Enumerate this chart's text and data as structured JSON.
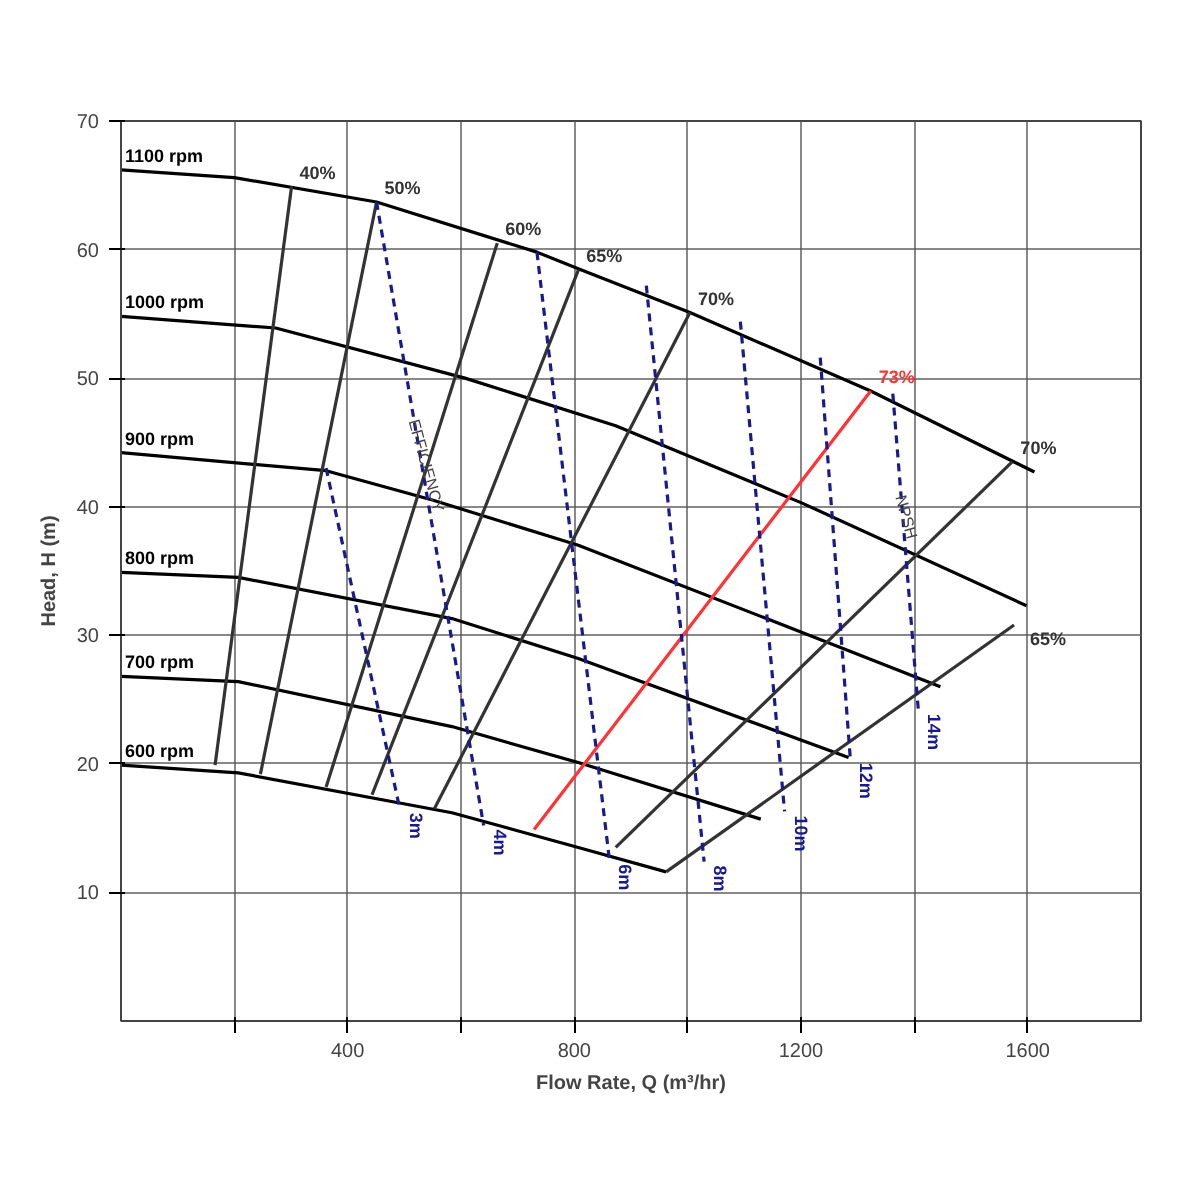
{
  "chart_data": {
    "type": "line",
    "xlabel": "Flow Rate, Q (m³/hr)",
    "ylabel": "Head, H (m)",
    "xlim": [
      0,
      1800
    ],
    "ylim": [
      0,
      70
    ],
    "xticks": [
      {
        "value": 200,
        "label": null
      },
      400,
      {
        "value": 600,
        "label": null
      },
      800,
      {
        "value": 1000,
        "label": null
      },
      1200,
      {
        "value": 1400,
        "label": null
      },
      1600
    ],
    "yticks": [
      10,
      20,
      30,
      40,
      50,
      60,
      70
    ],
    "grid": true,
    "annotations": [
      {
        "text": "EFFICIENCY",
        "x": 523,
        "y": 43
      },
      {
        "text": "NPSH",
        "x": 1370,
        "y": 39
      }
    ],
    "series": [
      {
        "name": "1100 rpm",
        "color": "#000000",
        "x": [
          0,
          200,
          451,
          734,
          807,
          1004,
          1323,
          1612
        ],
        "values": [
          66.2,
          65.6,
          63.7,
          59.8,
          58.5,
          55.1,
          49.0,
          42.7
        ]
      },
      {
        "name": "1000 rpm",
        "color": "#000000",
        "x": [
          0,
          273,
          607,
          873,
          1201,
          1598
        ],
        "values": [
          54.8,
          53.9,
          50.0,
          46.3,
          40.3,
          32.3
        ]
      },
      {
        "name": "900 rpm",
        "color": "#000000",
        "x": [
          0,
          362,
          551,
          807,
          1273,
          1446
        ],
        "values": [
          44.2,
          42.8,
          40.5,
          37.0,
          29.0,
          26.0
        ]
      },
      {
        "name": "800 rpm",
        "color": "#000000",
        "x": [
          0,
          207,
          584,
          807,
          1284
        ],
        "values": [
          34.9,
          34.5,
          31.3,
          28.2,
          20.5
        ]
      },
      {
        "name": "700 rpm",
        "color": "#000000",
        "x": [
          0,
          207,
          584,
          807,
          1129
        ],
        "values": [
          26.8,
          26.4,
          22.9,
          20.1,
          15.7
        ]
      },
      {
        "name": "600 rpm",
        "color": "#000000",
        "x": [
          0,
          207,
          584,
          807,
          962
        ],
        "values": [
          19.9,
          19.3,
          16.2,
          13.5,
          11.6
        ]
      },
      {
        "name": "40%",
        "color": "#333333",
        "x": [
          166,
          301
        ],
        "values": [
          19.9,
          64.9
        ]
      },
      {
        "name": "50%",
        "color": "#333333",
        "x": [
          246,
          451
        ],
        "values": [
          19.2,
          63.7
        ]
      },
      {
        "name": "60%",
        "color": "#333333",
        "x": [
          362,
          664
        ],
        "values": [
          18.2,
          60.5
        ]
      },
      {
        "name": "65%",
        "color": "#333333",
        "x": [
          443,
          807
        ],
        "values": [
          17.6,
          58.4
        ]
      },
      {
        "name": "70%",
        "color": "#333333",
        "x": [
          553,
          1004
        ],
        "values": [
          16.5,
          55.1
        ]
      },
      {
        "name": "73%",
        "color": "#ff3333",
        "x": [
          729,
          1323
        ],
        "values": [
          14.9,
          49.0
        ]
      },
      {
        "name": "70%",
        "color": "#333333",
        "x": [
          873,
          1573
        ],
        "values": [
          13.5,
          43.5
        ]
      },
      {
        "name": "65%",
        "color": "#333333",
        "x": [
          962,
          1576
        ],
        "values": [
          11.6,
          30.8
        ]
      },
      {
        "name": "3m",
        "color": "#1a1a8c",
        "line_style": "dashed",
        "x": [
          362,
          492
        ],
        "values": [
          43.0,
          16.5
        ]
      },
      {
        "name": "4m",
        "color": "#1a1a8c",
        "line_style": "dashed",
        "x": [
          451,
          640
        ],
        "values": [
          63.7,
          15.2
        ]
      },
      {
        "name": "6m",
        "color": "#1a1a8c",
        "line_style": "dashed",
        "x": [
          734,
          862
        ],
        "values": [
          59.8,
          12.5
        ]
      },
      {
        "name": "8m",
        "color": "#1a1a8c",
        "line_style": "dashed",
        "x": [
          927,
          1029
        ],
        "values": [
          57.2,
          12.4
        ]
      },
      {
        "name": "10m",
        "color": "#1a1a8c",
        "line_style": "dashed",
        "x": [
          1093,
          1171
        ],
        "values": [
          54.4,
          16.3
        ]
      },
      {
        "name": "12m",
        "color": "#1a1a8c",
        "line_style": "dashed",
        "x": [
          1234,
          1287
        ],
        "values": [
          51.6,
          20.4
        ]
      },
      {
        "name": "14m",
        "color": "#1a1a8c",
        "line_style": "dashed",
        "x": [
          1362,
          1407
        ],
        "values": [
          48.8,
          24.2
        ]
      }
    ]
  }
}
